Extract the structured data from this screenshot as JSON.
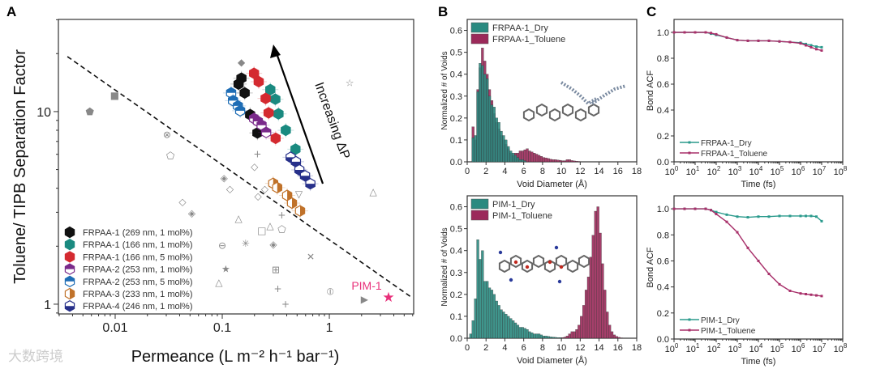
{
  "panel_labels": [
    "A",
    "B",
    "C"
  ],
  "watermark": "大数跨境",
  "chart_data": [
    {
      "id": "A",
      "type": "scatter",
      "xscale": "log",
      "yscale": "log",
      "xlim": [
        0.00295,
        6.13
      ],
      "ylim": [
        0.89,
        30.1
      ],
      "xticks": [
        0.01,
        0.1,
        1
      ],
      "xtick_labels": [
        "0.01",
        "0.1",
        "1"
      ],
      "yticks": [
        1,
        10
      ],
      "ytick_labels": [
        "1",
        "10"
      ],
      "xlabel": "Permeance (L m⁻² h⁻¹ bar⁻¹)",
      "ylabel": "Toluene/ TIPB Separation Factor",
      "annotation_arrow": "Increasing ΔP",
      "upper_bound_line": {
        "style": "dashed",
        "from": [
          0.00358,
          19.3
        ],
        "to": [
          5.8,
          1.09
        ]
      },
      "legend_placement": "bottom-left",
      "series": [
        {
          "name": "FRPAA-1 (269 nm, 1 mol%)",
          "color": "#111111",
          "fill": "full",
          "x": [
            0.151,
            0.142,
            0.162,
            0.182,
            0.213
          ],
          "y": [
            14.9,
            13.9,
            12.5,
            9.64,
            7.75
          ]
        },
        {
          "name": "FRPAA-1 (166 nm, 1 mol%)",
          "color": "#1a8a80",
          "fill": "full",
          "x": [
            0.281,
            0.313,
            0.335,
            0.392,
            0.483
          ],
          "y": [
            13.0,
            11.6,
            9.73,
            8.0,
            6.38
          ]
        },
        {
          "name": "FRPAA-1 (166 nm, 5 mol%)",
          "color": "#d42a30",
          "fill": "full",
          "x": [
            0.198,
            0.219,
            0.254,
            0.271,
            0.315
          ],
          "y": [
            15.8,
            14.3,
            11.7,
            9.85,
            7.27
          ]
        },
        {
          "name": "FRPAA-2 (253 nm, 1 mol%)",
          "color": "#7a2a8a",
          "fill": "top",
          "x": [
            0.198,
            0.215,
            0.233,
            0.257
          ],
          "y": [
            9.2,
            8.9,
            8.5,
            7.8
          ]
        },
        {
          "name": "FRPAA-2 (253 nm, 5 mol%)",
          "color": "#1e6db5",
          "fill": "top",
          "x": [
            0.121,
            0.126,
            0.14,
            0.147
          ],
          "y": [
            12.5,
            11.4,
            10.7,
            10.1
          ]
        },
        {
          "name": "FRPAA-3 (233 nm, 1 mol%)",
          "color": "#c0722a",
          "fill": "right",
          "x": [
            0.299,
            0.326,
            0.404,
            0.448,
            0.533
          ],
          "y": [
            4.24,
            4.03,
            3.67,
            3.35,
            3.05
          ]
        },
        {
          "name": "FRPAA-4 (246 nm, 1 mol%)",
          "color": "#27308a",
          "fill": "bottom",
          "x": [
            0.435,
            0.488,
            0.525,
            0.593,
            0.665
          ],
          "y": [
            5.79,
            5.49,
            4.98,
            4.64,
            4.22
          ]
        }
      ],
      "highlight": {
        "name": "PIM-1",
        "x": 3.57,
        "y": 1.09,
        "color": "#e8307a",
        "marker": "star"
      },
      "literature_points": [
        {
          "m": "⬟",
          "x": 0.0058,
          "y": 10.0
        },
        {
          "m": "■",
          "x": 0.0099,
          "y": 12.1
        },
        {
          "m": "◆",
          "x": 0.151,
          "y": 18.0
        },
        {
          "m": "☆",
          "x": 1.55,
          "y": 14.1
        },
        {
          "m": "⊗",
          "x": 0.0305,
          "y": 7.6
        },
        {
          "m": "⬠",
          "x": 0.0328,
          "y": 5.9
        },
        {
          "m": "◇",
          "x": 0.2,
          "y": 5.18
        },
        {
          "m": "◈",
          "x": 0.104,
          "y": 4.52
        },
        {
          "m": "◇",
          "x": 0.118,
          "y": 3.97
        },
        {
          "m": "◇",
          "x": 0.0425,
          "y": 3.4
        },
        {
          "m": "◈",
          "x": 0.052,
          "y": 2.97
        },
        {
          "m": "◇",
          "x": 0.216,
          "y": 3.63
        },
        {
          "m": "△",
          "x": 0.142,
          "y": 2.79
        },
        {
          "m": "△",
          "x": 2.57,
          "y": 3.83
        },
        {
          "m": "+",
          "x": 0.213,
          "y": 6.0
        },
        {
          "m": "□",
          "x": 0.234,
          "y": 2.41
        },
        {
          "m": "△",
          "x": 0.28,
          "y": 2.55
        },
        {
          "m": "⬠",
          "x": 0.36,
          "y": 2.45
        },
        {
          "m": "+",
          "x": 0.36,
          "y": 2.9
        },
        {
          "m": "⊖",
          "x": 0.1,
          "y": 2.02
        },
        {
          "m": "✳",
          "x": 0.165,
          "y": 2.06
        },
        {
          "m": "◈",
          "x": 0.3,
          "y": 2.04
        },
        {
          "m": "✕",
          "x": 0.67,
          "y": 1.76
        },
        {
          "m": "★",
          "x": 0.108,
          "y": 1.52
        },
        {
          "m": "⊞",
          "x": 0.316,
          "y": 1.51
        },
        {
          "m": "△",
          "x": 0.093,
          "y": 1.3
        },
        {
          "m": "+",
          "x": 0.33,
          "y": 1.2
        },
        {
          "m": "⦶",
          "x": 1.02,
          "y": 1.16
        },
        {
          "m": "+",
          "x": 0.39,
          "y": 1.0
        },
        {
          "m": "▽",
          "x": 0.52,
          "y": 3.72
        },
        {
          "m": "◇",
          "x": 0.25,
          "y": 3.97
        },
        {
          "m": "▶",
          "x": 2.13,
          "y": 1.06
        }
      ]
    },
    {
      "id": "B-top",
      "type": "bar",
      "xlim": [
        0,
        18
      ],
      "ylim": [
        0,
        0.65
      ],
      "bin_width": 0.25,
      "xticks": [
        "0",
        "2",
        "4",
        "6",
        "8",
        "10",
        "12",
        "14",
        "16",
        "18"
      ],
      "yticks": [
        "0.0",
        "0.1",
        "0.2",
        "0.3",
        "0.4",
        "0.5",
        "0.6"
      ],
      "xlabel": "Void Diameter (Å)",
      "ylabel": "Normalized # of Voids",
      "legend_placement": "top-left",
      "series": [
        {
          "name": "FRPAA-1_Toluene",
          "color": "#9b2a5a",
          "start": 0.5,
          "values": [
            0.16,
            0.1,
            0.33,
            0.43,
            0.52,
            0.46,
            0.4,
            0.33,
            0.28,
            0.22,
            0.18,
            0.15,
            0.12,
            0.1,
            0.08,
            0.06,
            0.04,
            0.03,
            0.04,
            0.04,
            0.05,
            0.05,
            0.055,
            0.06,
            0.05,
            0.045,
            0.04,
            0.035,
            0.03,
            0.025,
            0.02,
            0.018,
            0.015,
            0.012,
            0.01,
            0.01,
            0.008,
            0.007,
            0.005,
            0.005,
            0.01,
            0.01,
            0.006,
            0.004,
            0.003,
            0.002
          ]
        },
        {
          "name": "FRPAA-1_Dry",
          "color": "#2a8a80",
          "start": 0.5,
          "values": [
            0.11,
            0.12,
            0.32,
            0.45,
            0.44,
            0.4,
            0.38,
            0.3,
            0.26,
            0.25,
            0.2,
            0.18,
            0.14,
            0.12,
            0.1,
            0.07,
            0.05,
            0.04,
            0.03,
            0.02,
            0.01,
            0.01,
            0.005
          ]
        }
      ]
    },
    {
      "id": "B-bottom",
      "type": "bar",
      "xlim": [
        0,
        18
      ],
      "ylim": [
        0,
        0.65
      ],
      "bin_width": 0.25,
      "xticks": [
        "0",
        "2",
        "4",
        "6",
        "8",
        "10",
        "12",
        "14",
        "16",
        "18"
      ],
      "yticks": [
        "0.0",
        "0.1",
        "0.2",
        "0.3",
        "0.4",
        "0.5",
        "0.6"
      ],
      "xlabel": "Void Diameter (Å)",
      "ylabel": "Normalized # of Voids",
      "legend_placement": "top-left",
      "series": [
        {
          "name": "PIM-1_Dry",
          "color": "#2a8a80",
          "start": 0.25,
          "values": [
            0.02,
            0.08,
            0.18,
            0.45,
            0.36,
            0.4,
            0.26,
            0.26,
            0.23,
            0.22,
            0.2,
            0.17,
            0.15,
            0.13,
            0.12,
            0.11,
            0.1,
            0.09,
            0.08,
            0.07,
            0.06,
            0.05,
            0.05,
            0.045,
            0.04,
            0.03,
            0.025,
            0.02,
            0.02,
            0.02,
            0.015,
            0.01,
            0.01,
            0.008,
            0.006,
            0.005,
            0.004,
            0.003,
            0.003,
            0.002,
            0.002
          ]
        },
        {
          "name": "PIM-1_Toluene",
          "color": "#9b2a5a",
          "start": 10.0,
          "values": [
            0.003,
            0.005,
            0.01,
            0.02,
            0.03,
            0.03,
            0.04,
            0.06,
            0.1,
            0.15,
            0.22,
            0.28,
            0.37,
            0.47,
            0.58,
            0.6,
            0.48,
            0.34,
            0.22,
            0.12,
            0.06,
            0.03,
            0.015,
            0.008,
            0.004,
            0.002
          ]
        }
      ]
    },
    {
      "id": "C-top",
      "type": "line",
      "xscale": "log",
      "xlim_log10": [
        0,
        8
      ],
      "ylim": [
        0,
        1.1
      ],
      "xtick_exponents": [
        "0",
        "1",
        "2",
        "3",
        "4",
        "5",
        "6",
        "7",
        "8"
      ],
      "yticks": [
        "0.0",
        "0.2",
        "0.4",
        "0.6",
        "0.8",
        "1.0"
      ],
      "xlabel": "Time (fs)",
      "ylabel": "Bond ACF",
      "legend_placement": "bottom-left",
      "x_log10": [
        0,
        0.5,
        1,
        1.5,
        1.75,
        2,
        2.5,
        3,
        3.5,
        4,
        4.5,
        5,
        5.5,
        6,
        6.25,
        6.5,
        6.75,
        7
      ],
      "series": [
        {
          "name": "FRPAA-1_Dry",
          "color": "#2a9a8c",
          "values": [
            1,
            1,
            1,
            1,
            0.99,
            0.98,
            0.96,
            0.94,
            0.935,
            0.935,
            0.935,
            0.93,
            0.925,
            0.92,
            0.91,
            0.9,
            0.89,
            0.885
          ]
        },
        {
          "name": "FRPAA-1_Toluene",
          "color": "#a8306a",
          "values": [
            1,
            1,
            1,
            1,
            0.995,
            0.985,
            0.96,
            0.94,
            0.935,
            0.935,
            0.935,
            0.93,
            0.925,
            0.915,
            0.9,
            0.885,
            0.87,
            0.86
          ]
        }
      ]
    },
    {
      "id": "C-bottom",
      "type": "line",
      "xscale": "log",
      "xlim_log10": [
        0,
        8
      ],
      "ylim": [
        0,
        1.1
      ],
      "xtick_exponents": [
        "0",
        "1",
        "2",
        "3",
        "4",
        "5",
        "6",
        "7",
        "8"
      ],
      "yticks": [
        "0.0",
        "0.2",
        "0.4",
        "0.6",
        "0.8",
        "1.0"
      ],
      "xlabel": "Time (fs)",
      "ylabel": "Bond ACF",
      "legend_placement": "bottom-left",
      "x_log10": [
        0,
        0.5,
        1,
        1.5,
        1.75,
        2,
        2.5,
        3,
        3.5,
        4,
        4.5,
        5,
        5.5,
        6,
        6.25,
        6.5,
        6.75,
        7
      ],
      "series": [
        {
          "name": "PIM-1_Dry",
          "color": "#2a9a8c",
          "values": [
            1,
            1,
            1,
            1,
            0.99,
            0.975,
            0.955,
            0.94,
            0.935,
            0.94,
            0.94,
            0.945,
            0.945,
            0.945,
            0.945,
            0.945,
            0.94,
            0.905
          ]
        },
        {
          "name": "PIM-1_Toluene",
          "color": "#a8306a",
          "values": [
            1,
            1,
            1,
            1,
            0.99,
            0.96,
            0.9,
            0.82,
            0.7,
            0.6,
            0.5,
            0.42,
            0.37,
            0.35,
            0.345,
            0.34,
            0.335,
            0.33
          ]
        }
      ]
    }
  ]
}
